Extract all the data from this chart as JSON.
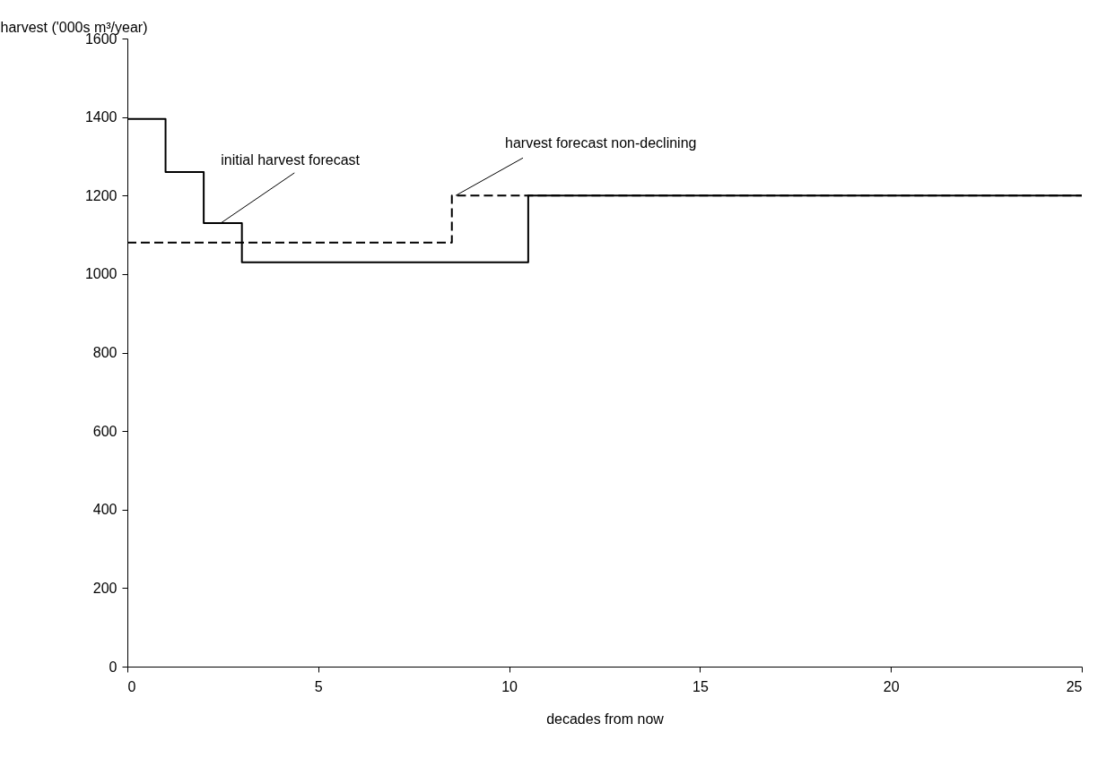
{
  "chart_data": {
    "type": "step",
    "xlabel": "decades from now",
    "ylabel": "harvest ('000s m³/year)",
    "xlim": [
      0,
      25
    ],
    "xticks": [
      0,
      5,
      10,
      15,
      20,
      25
    ],
    "ylim": [
      0,
      1600
    ],
    "yticks": [
      0,
      200,
      400,
      600,
      800,
      1000,
      1200,
      1400,
      1600
    ],
    "grid": false,
    "series": [
      {
        "color": "#000000",
        "line_style": "solid",
        "x": [
          0,
          1,
          2,
          3,
          10.5,
          25
        ],
        "values": [
          1395,
          1260,
          1130,
          1030,
          1200,
          1200
        ]
      },
      {
        "color": "#000000",
        "line_style": "dashed",
        "x": [
          0,
          8.5,
          25
        ],
        "values": [
          1080,
          1200,
          1200
        ]
      }
    ],
    "annotations": [
      {
        "text": "initial harvest forecast",
        "x": 2.45,
        "y": 1130
      },
      {
        "text": "harvest forecast non-declining",
        "x": 8.6,
        "y": 1200
      }
    ]
  }
}
